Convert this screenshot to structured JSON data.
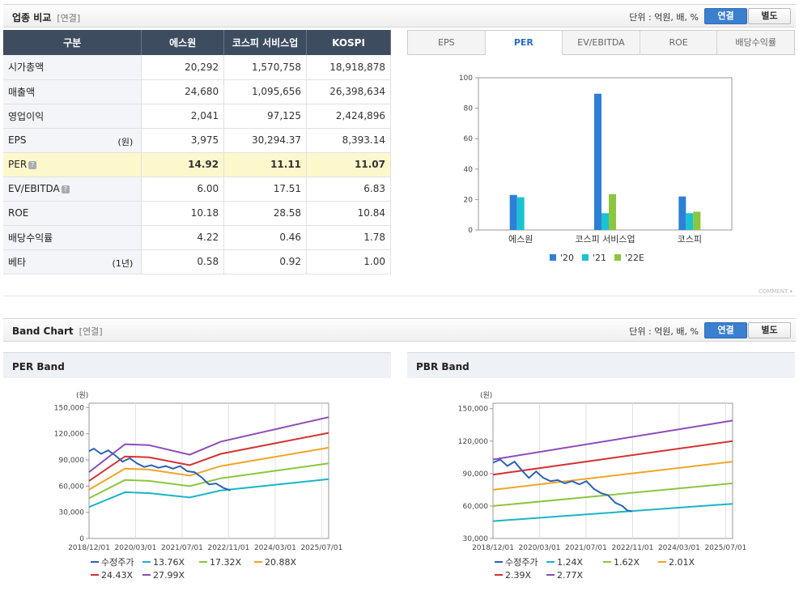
{
  "industry": {
    "title": "업종 비교",
    "subtitle": "[연결]",
    "unit_label": "단위 : 억원, 배, %",
    "toggle_on": "연결",
    "toggle_off": "별도",
    "columns": [
      "구분",
      "에스원",
      "코스피 서비스업",
      "KOSPI"
    ],
    "rows": [
      {
        "label": "시가총액",
        "sub": "",
        "info": false,
        "highlight": false,
        "values": [
          "20,292",
          "1,570,758",
          "18,918,878"
        ]
      },
      {
        "label": "매출액",
        "sub": "",
        "info": false,
        "highlight": false,
        "values": [
          "24,680",
          "1,095,656",
          "26,398,634"
        ]
      },
      {
        "label": "영업이익",
        "sub": "",
        "info": false,
        "highlight": false,
        "values": [
          "2,041",
          "97,125",
          "2,424,896"
        ]
      },
      {
        "label": "EPS",
        "sub": "(원)",
        "info": false,
        "highlight": false,
        "values": [
          "3,975",
          "30,294.37",
          "8,393.14"
        ]
      },
      {
        "label": "PER",
        "sub": "",
        "info": true,
        "highlight": true,
        "values": [
          "14.92",
          "11.11",
          "11.07"
        ]
      },
      {
        "label": "EV/EBITDA",
        "sub": "",
        "info": true,
        "highlight": false,
        "values": [
          "6.00",
          "17.51",
          "6.83"
        ]
      },
      {
        "label": "ROE",
        "sub": "",
        "info": false,
        "highlight": false,
        "values": [
          "10.18",
          "28.58",
          "10.84"
        ]
      },
      {
        "label": "배당수익률",
        "sub": "",
        "info": false,
        "highlight": false,
        "values": [
          "4.22",
          "0.46",
          "1.78"
        ]
      },
      {
        "label": "베타",
        "sub": "(1년)",
        "info": false,
        "highlight": false,
        "values": [
          "0.58",
          "0.92",
          "1.00"
        ]
      }
    ],
    "tabs": [
      "EPS",
      "PER",
      "EV/EBITDA",
      "ROE",
      "배당수익률"
    ],
    "active_tab": "PER",
    "comment_label": "COMMENT"
  },
  "chart_data": [
    {
      "type": "bar",
      "categories": [
        "에스원",
        "코스피 서비스업",
        "코스피"
      ],
      "series": [
        {
          "name": "'20",
          "color": "#2e7fd6",
          "values": [
            23,
            89.5,
            22
          ]
        },
        {
          "name": "'21",
          "color": "#19c3d2",
          "values": [
            21.5,
            11,
            11
          ]
        },
        {
          "name": "'22E",
          "color": "#8cc63e",
          "values": [
            null,
            23.5,
            12
          ]
        }
      ],
      "ylim": [
        0,
        100
      ],
      "yticks": [
        0,
        20,
        40,
        60,
        80,
        100
      ],
      "grid": false,
      "legend": "bottom"
    },
    {
      "type": "line",
      "title": "PER Band",
      "ylabel": "(원)",
      "ylim": [
        0,
        155000
      ],
      "yticks": [
        "0",
        "30,000",
        "60,000",
        "90,000",
        "120,000",
        "150,000"
      ],
      "ytick_values": [
        0,
        30000,
        60000,
        90000,
        120000,
        150000
      ],
      "xticks": [
        "2018/12/01",
        "2020/03/01",
        "2021/07/01",
        "2022/11/01",
        "2024/03/01",
        "2025/07/01"
      ],
      "series": [
        {
          "name": "수정주가",
          "color": "#2a62b8",
          "values": [
            [
              0,
              100000
            ],
            [
              0.02,
              103000
            ],
            [
              0.05,
              97000
            ],
            [
              0.08,
              101000
            ],
            [
              0.11,
              95000
            ],
            [
              0.14,
              88000
            ],
            [
              0.17,
              92000
            ],
            [
              0.2,
              86000
            ],
            [
              0.23,
              82000
            ],
            [
              0.26,
              84000
            ],
            [
              0.29,
              81000
            ],
            [
              0.32,
              83000
            ],
            [
              0.35,
              80000
            ],
            [
              0.38,
              83000
            ],
            [
              0.41,
              77000
            ],
            [
              0.44,
              76000
            ],
            [
              0.47,
              70000
            ],
            [
              0.5,
              62000
            ],
            [
              0.53,
              63000
            ],
            [
              0.56,
              58000
            ],
            [
              0.59,
              55000
            ]
          ]
        },
        {
          "name": "13.76X",
          "color": "#19b5c6",
          "values": [
            [
              0,
              36000
            ],
            [
              0.15,
              53000
            ],
            [
              0.25,
              52000
            ],
            [
              0.42,
              47000
            ],
            [
              0.55,
              55000
            ],
            [
              1,
              68000
            ]
          ]
        },
        {
          "name": "17.32X",
          "color": "#8cc63e",
          "values": [
            [
              0,
              46000
            ],
            [
              0.15,
              67000
            ],
            [
              0.25,
              66000
            ],
            [
              0.42,
              60000
            ],
            [
              0.55,
              69000
            ],
            [
              1,
              86000
            ]
          ]
        },
        {
          "name": "20.88X",
          "color": "#f3a425",
          "values": [
            [
              0,
              56000
            ],
            [
              0.15,
              80000
            ],
            [
              0.25,
              79000
            ],
            [
              0.42,
              72000
            ],
            [
              0.55,
              83000
            ],
            [
              1,
              104000
            ]
          ]
        },
        {
          "name": "24.43X",
          "color": "#d43232",
          "values": [
            [
              0,
              66000
            ],
            [
              0.15,
              94000
            ],
            [
              0.25,
              93000
            ],
            [
              0.42,
              84000
            ],
            [
              0.55,
              97000
            ],
            [
              1,
              121000
            ]
          ]
        },
        {
          "name": "27.99X",
          "color": "#8e4bb8",
          "values": [
            [
              0,
              76000
            ],
            [
              0.15,
              108000
            ],
            [
              0.25,
              107000
            ],
            [
              0.42,
              96000
            ],
            [
              0.55,
              111000
            ],
            [
              1,
              139000
            ]
          ]
        }
      ],
      "legend": "bottom"
    },
    {
      "type": "line",
      "title": "PBR Band",
      "ylabel": "(원)",
      "ylim": [
        30000,
        155000
      ],
      "yticks": [
        "30,000",
        "60,000",
        "90,000",
        "120,000",
        "150,000"
      ],
      "ytick_values": [
        30000,
        60000,
        90000,
        120000,
        150000
      ],
      "xticks": [
        "2018/12/01",
        "2020/03/01",
        "2021/07/01",
        "2022/11/01",
        "2024/03/01",
        "2025/07/01"
      ],
      "series": [
        {
          "name": "수정주가",
          "color": "#2a62b8",
          "values": [
            [
              0,
              100000
            ],
            [
              0.03,
              103000
            ],
            [
              0.06,
              97000
            ],
            [
              0.09,
              101000
            ],
            [
              0.12,
              93000
            ],
            [
              0.15,
              86000
            ],
            [
              0.18,
              92000
            ],
            [
              0.21,
              86000
            ],
            [
              0.24,
              83000
            ],
            [
              0.27,
              84000
            ],
            [
              0.3,
              81000
            ],
            [
              0.33,
              83000
            ],
            [
              0.36,
              80000
            ],
            [
              0.39,
              83000
            ],
            [
              0.42,
              76000
            ],
            [
              0.45,
              72000
            ],
            [
              0.48,
              70000
            ],
            [
              0.51,
              63000
            ],
            [
              0.54,
              60000
            ],
            [
              0.56,
              56000
            ],
            [
              0.58,
              55000
            ]
          ]
        },
        {
          "name": "1.24X",
          "color": "#19b5c6",
          "values": [
            [
              0,
              46000
            ],
            [
              1,
              62000
            ]
          ]
        },
        {
          "name": "1.62X",
          "color": "#8cc63e",
          "values": [
            [
              0,
              60000
            ],
            [
              1,
              81000
            ]
          ]
        },
        {
          "name": "2.01X",
          "color": "#f3a425",
          "values": [
            [
              0,
              75000
            ],
            [
              1,
              101000
            ]
          ]
        },
        {
          "name": "2.39X",
          "color": "#d43232",
          "values": [
            [
              0,
              89000
            ],
            [
              1,
              120000
            ]
          ]
        },
        {
          "name": "2.77X",
          "color": "#8e4bb8",
          "values": [
            [
              0,
              103000
            ],
            [
              1,
              139000
            ]
          ]
        }
      ],
      "legend": "bottom"
    }
  ],
  "band": {
    "title": "Band Chart",
    "subtitle": "[연결]",
    "unit_label": "단위 : 억원, 배, %",
    "toggle_on": "연결",
    "toggle_off": "별도"
  }
}
